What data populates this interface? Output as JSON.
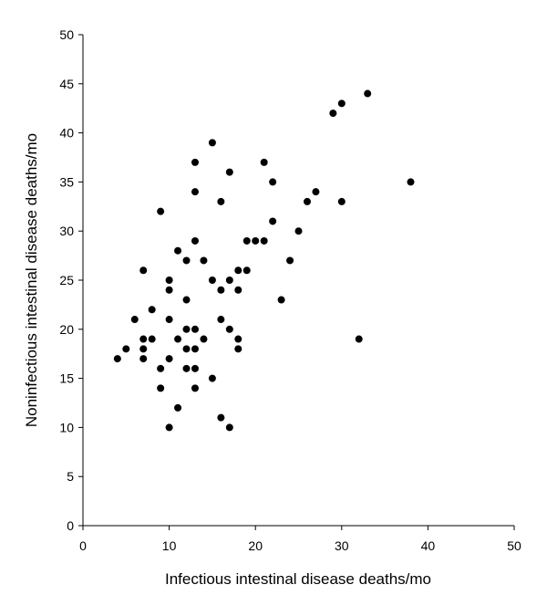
{
  "chart_data": {
    "type": "scatter",
    "xlabel": "Infectious intestinal disease deaths/mo",
    "ylabel": "Noninfectious intestinal disease deaths/mo",
    "xlim": [
      0,
      50
    ],
    "ylim": [
      0,
      50
    ],
    "x_ticks": [
      "0",
      "10",
      "20",
      "30",
      "40",
      "50"
    ],
    "y_ticks": [
      "0",
      "5",
      "10",
      "15",
      "20",
      "25",
      "30",
      "35",
      "40",
      "45",
      "50"
    ],
    "grid": false,
    "legend": "none",
    "marker_color": "#000000",
    "points": [
      [
        4,
        17
      ],
      [
        5,
        18
      ],
      [
        6,
        21
      ],
      [
        7,
        26
      ],
      [
        7,
        19
      ],
      [
        7,
        18
      ],
      [
        7,
        17
      ],
      [
        8,
        22
      ],
      [
        8,
        19
      ],
      [
        9,
        32
      ],
      [
        9,
        16
      ],
      [
        9,
        14
      ],
      [
        10,
        25
      ],
      [
        10,
        24
      ],
      [
        10,
        21
      ],
      [
        10,
        17
      ],
      [
        10,
        10
      ],
      [
        11,
        28
      ],
      [
        11,
        19
      ],
      [
        11,
        12
      ],
      [
        12,
        27
      ],
      [
        12,
        23
      ],
      [
        12,
        20
      ],
      [
        12,
        18
      ],
      [
        12,
        16
      ],
      [
        13,
        37
      ],
      [
        13,
        34
      ],
      [
        13,
        29
      ],
      [
        13,
        20
      ],
      [
        13,
        18
      ],
      [
        13,
        16
      ],
      [
        13,
        14
      ],
      [
        14,
        27
      ],
      [
        14,
        19
      ],
      [
        15,
        39
      ],
      [
        15,
        25
      ],
      [
        15,
        15
      ],
      [
        16,
        33
      ],
      [
        16,
        24
      ],
      [
        16,
        21
      ],
      [
        16,
        11
      ],
      [
        17,
        36
      ],
      [
        17,
        25
      ],
      [
        17,
        20
      ],
      [
        17,
        10
      ],
      [
        18,
        26
      ],
      [
        18,
        24
      ],
      [
        18,
        19
      ],
      [
        18,
        18
      ],
      [
        19,
        29
      ],
      [
        19,
        26
      ],
      [
        20,
        29
      ],
      [
        21,
        37
      ],
      [
        21,
        29
      ],
      [
        22,
        35
      ],
      [
        22,
        31
      ],
      [
        23,
        23
      ],
      [
        24,
        27
      ],
      [
        25,
        30
      ],
      [
        26,
        33
      ],
      [
        27,
        34
      ],
      [
        29,
        42
      ],
      [
        30,
        43
      ],
      [
        30,
        33
      ],
      [
        32,
        19
      ],
      [
        33,
        44
      ],
      [
        38,
        35
      ]
    ]
  }
}
